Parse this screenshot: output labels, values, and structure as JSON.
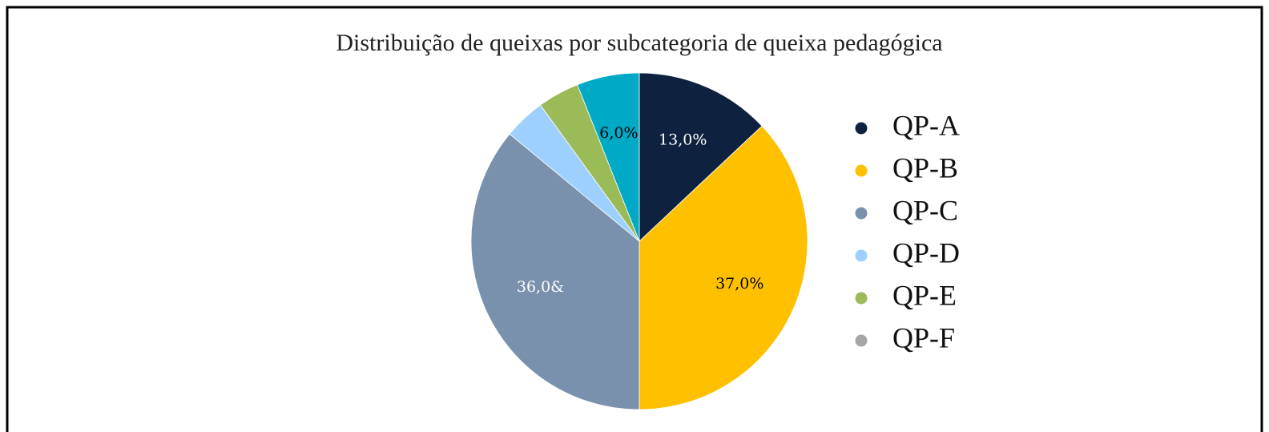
{
  "chart_data": {
    "type": "pie",
    "title": "Distribuição de queixas por subcategoria de queixa pedagógica",
    "categories": [
      "QP-A",
      "QP-B",
      "QP-C",
      "QP-D",
      "QP-E",
      "QP-F"
    ],
    "values": [
      13,
      37,
      36,
      4,
      4,
      6
    ],
    "value_labels": [
      "13,0%",
      "37,0%",
      "36,0&",
      null,
      null,
      "6,0%"
    ],
    "colors": [
      "#0e2240",
      "#ffc000",
      "#7a91ad",
      "#9dcfff",
      "#9bbb59",
      "#00aac6"
    ],
    "legend_colors": [
      "#0e2240",
      "#ffc000",
      "#7a91ad",
      "#9dcfff",
      "#9bbb59",
      "#a6a6a6"
    ],
    "label_colors": [
      "#ffffff",
      "#000000",
      "#ffffff",
      "#000000",
      "#000000",
      "#000000"
    ],
    "legend": "right"
  }
}
